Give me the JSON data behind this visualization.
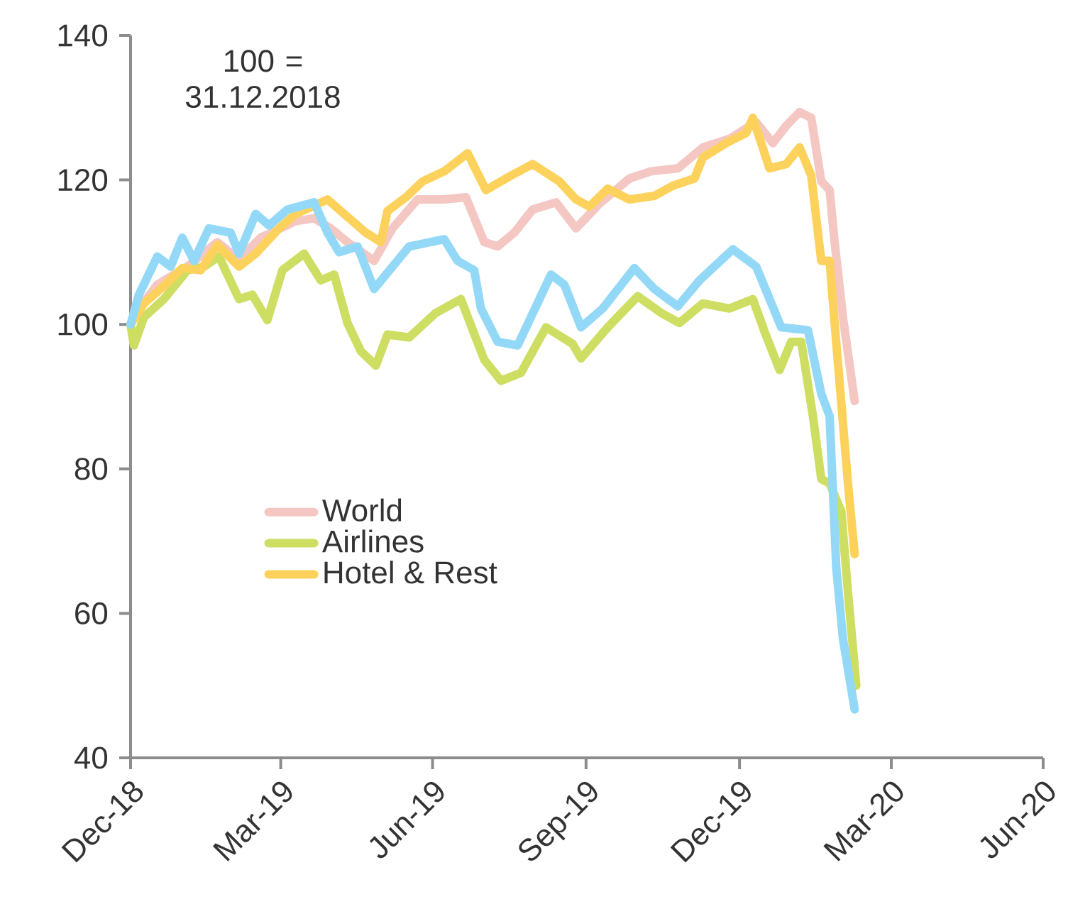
{
  "chart_data": {
    "type": "line",
    "annotations": [
      "100 = 31.12.2018"
    ],
    "xlim": [
      "2018-12-31",
      "2020-06-30"
    ],
    "xticks": [
      {
        "value": "2018-12-31",
        "label": "Dec-18"
      },
      {
        "value": "2019-03-31",
        "label": "Mar-19"
      },
      {
        "value": "2019-06-30",
        "label": "Jun-19"
      },
      {
        "value": "2019-09-30",
        "label": "Sep-19"
      },
      {
        "value": "2019-12-31",
        "label": "Dec-19"
      },
      {
        "value": "2020-03-31",
        "label": "Mar-20"
      },
      {
        "value": "2020-06-30",
        "label": "Jun-20"
      }
    ],
    "ylim": [
      40,
      140
    ],
    "yticks": [
      40,
      60,
      80,
      100,
      120,
      140
    ],
    "grid": false,
    "legend": "bottom left",
    "marker": "none",
    "line_style": "solid",
    "series": [
      {
        "name": "World",
        "color": "#f4c7c3",
        "x": [
          "2018-12-31",
          "2019-01-05",
          "2019-01-16",
          "2019-02-03",
          "2019-02-21",
          "2019-03-06",
          "2019-03-19",
          "2019-04-09",
          "2019-04-20",
          "2019-04-30",
          "2019-05-10",
          "2019-05-26",
          "2019-06-06",
          "2019-06-21",
          "2019-07-07",
          "2019-07-20",
          "2019-07-31",
          "2019-08-08",
          "2019-08-18",
          "2019-08-29",
          "2019-09-12",
          "2019-09-24",
          "2019-10-08",
          "2019-10-26",
          "2019-11-08",
          "2019-11-24",
          "2019-12-09",
          "2019-12-25",
          "2020-01-10",
          "2020-01-20",
          "2020-01-28",
          "2020-02-05",
          "2020-02-12",
          "2020-02-18",
          "2020-02-23",
          "2020-02-26",
          "2020-03-02",
          "2020-03-09"
        ],
        "values": [
          100,
          102.2,
          105.5,
          108,
          111.4,
          109,
          112,
          114.3,
          114.7,
          113.3,
          111.4,
          108.8,
          113.3,
          117.3,
          117.3,
          117.6,
          111.4,
          110.8,
          112.7,
          115.9,
          116.9,
          113.3,
          116.7,
          120.2,
          121.2,
          121.6,
          124.5,
          125.7,
          128,
          125.1,
          127.5,
          129.4,
          128.6,
          119.8,
          118.6,
          111.4,
          101,
          89.4
        ]
      },
      {
        "name": "Airlines",
        "color": "#cdde62",
        "x": [
          "2018-12-31",
          "2019-01-02",
          "2019-01-08",
          "2019-01-20",
          "2019-02-03",
          "2019-02-13",
          "2019-02-22",
          "2019-03-06",
          "2019-03-14",
          "2019-03-23",
          "2019-04-01",
          "2019-04-14",
          "2019-04-24",
          "2019-05-02",
          "2019-05-10",
          "2019-05-18",
          "2019-05-27",
          "2019-06-03",
          "2019-06-16",
          "2019-07-02",
          "2019-07-17",
          "2019-07-31",
          "2019-08-10",
          "2019-08-22",
          "2019-09-06",
          "2019-09-22",
          "2019-09-27",
          "2019-10-13",
          "2019-10-31",
          "2019-11-14",
          "2019-11-25",
          "2019-12-09",
          "2019-12-25",
          "2020-01-08",
          "2020-01-15",
          "2020-01-24",
          "2020-01-31",
          "2020-02-06",
          "2020-02-13",
          "2020-02-18",
          "2020-02-23",
          "2020-03-01",
          "2020-03-05",
          "2020-03-10"
        ],
        "values": [
          100,
          97.1,
          101,
          103.5,
          107.5,
          108,
          109.4,
          103.5,
          104.1,
          100.6,
          107.5,
          109.8,
          106.1,
          106.9,
          100.2,
          96.3,
          94.3,
          98.6,
          98.2,
          101.6,
          103.5,
          95.1,
          92.2,
          93.3,
          99.6,
          97.3,
          95.3,
          99.6,
          103.9,
          101.6,
          100.2,
          102.9,
          102.2,
          103.5,
          99,
          93.7,
          97.6,
          97.6,
          87.3,
          78.6,
          78,
          74.1,
          62.9,
          50
        ]
      },
      {
        "name": "Hotel & Rest",
        "color": "#fdd25c",
        "x": [
          "2018-12-31",
          "2019-01-08",
          "2019-01-18",
          "2019-01-31",
          "2019-02-11",
          "2019-02-21",
          "2019-03-06",
          "2019-03-16",
          "2019-03-30",
          "2019-04-09",
          "2019-04-28",
          "2019-05-10",
          "2019-05-21",
          "2019-05-30",
          "2019-06-03",
          "2019-06-14",
          "2019-06-24",
          "2019-07-07",
          "2019-07-21",
          "2019-08-01",
          "2019-08-16",
          "2019-08-29",
          "2019-09-14",
          "2019-09-24",
          "2019-10-02",
          "2019-10-13",
          "2019-10-26",
          "2019-11-10",
          "2019-11-21",
          "2019-12-04",
          "2019-12-09",
          "2019-12-23",
          "2020-01-04",
          "2020-01-08",
          "2020-01-18",
          "2020-01-28",
          "2020-02-05",
          "2020-02-12",
          "2020-02-18",
          "2020-02-23",
          "2020-02-26",
          "2020-03-05",
          "2020-03-09"
        ],
        "values": [
          100,
          102.9,
          104.9,
          107.8,
          107.5,
          111,
          108,
          109.8,
          113.3,
          115.3,
          117.3,
          114.9,
          112.7,
          111.4,
          115.7,
          117.6,
          119.8,
          121.2,
          123.7,
          118.6,
          120.6,
          122.2,
          119.8,
          117.3,
          116.3,
          118.8,
          117.3,
          117.8,
          119.2,
          120.2,
          123.1,
          125.1,
          126.5,
          128.6,
          121.6,
          122.2,
          124.5,
          120.6,
          108.8,
          108.8,
          100.2,
          78,
          68.2
        ]
      },
      {
        "color": "#93d9f7",
        "x": [
          "2018-12-31",
          "2019-01-05",
          "2019-01-16",
          "2019-01-24",
          "2019-01-31",
          "2019-02-07",
          "2019-02-16",
          "2019-03-01",
          "2019-03-06",
          "2019-03-16",
          "2019-03-24",
          "2019-04-04",
          "2019-04-20",
          "2019-04-28",
          "2019-05-05",
          "2019-05-16",
          "2019-05-26",
          "2019-06-06",
          "2019-06-16",
          "2019-07-07",
          "2019-07-15",
          "2019-07-25",
          "2019-07-29",
          "2019-08-08",
          "2019-08-20",
          "2019-09-09",
          "2019-09-17",
          "2019-09-27",
          "2019-10-10",
          "2019-10-29",
          "2019-11-10",
          "2019-11-24",
          "2019-12-07",
          "2019-12-27",
          "2020-01-10",
          "2020-01-25",
          "2020-02-10",
          "2020-02-18",
          "2020-02-23",
          "2020-02-27",
          "2020-03-02",
          "2020-03-09"
        ],
        "values": [
          100,
          104.1,
          109.4,
          108,
          112,
          108.8,
          113.3,
          112.7,
          109.8,
          115.3,
          113.7,
          115.9,
          116.9,
          112.7,
          110,
          110.8,
          104.9,
          108,
          110.8,
          111.8,
          108.8,
          107.5,
          102.2,
          97.6,
          97.1,
          106.9,
          105.5,
          99.6,
          102.2,
          107.8,
          104.9,
          102.5,
          106.1,
          110.4,
          108,
          99.6,
          99.2,
          90.4,
          87.3,
          66.3,
          56.5,
          46.7
        ]
      }
    ]
  }
}
